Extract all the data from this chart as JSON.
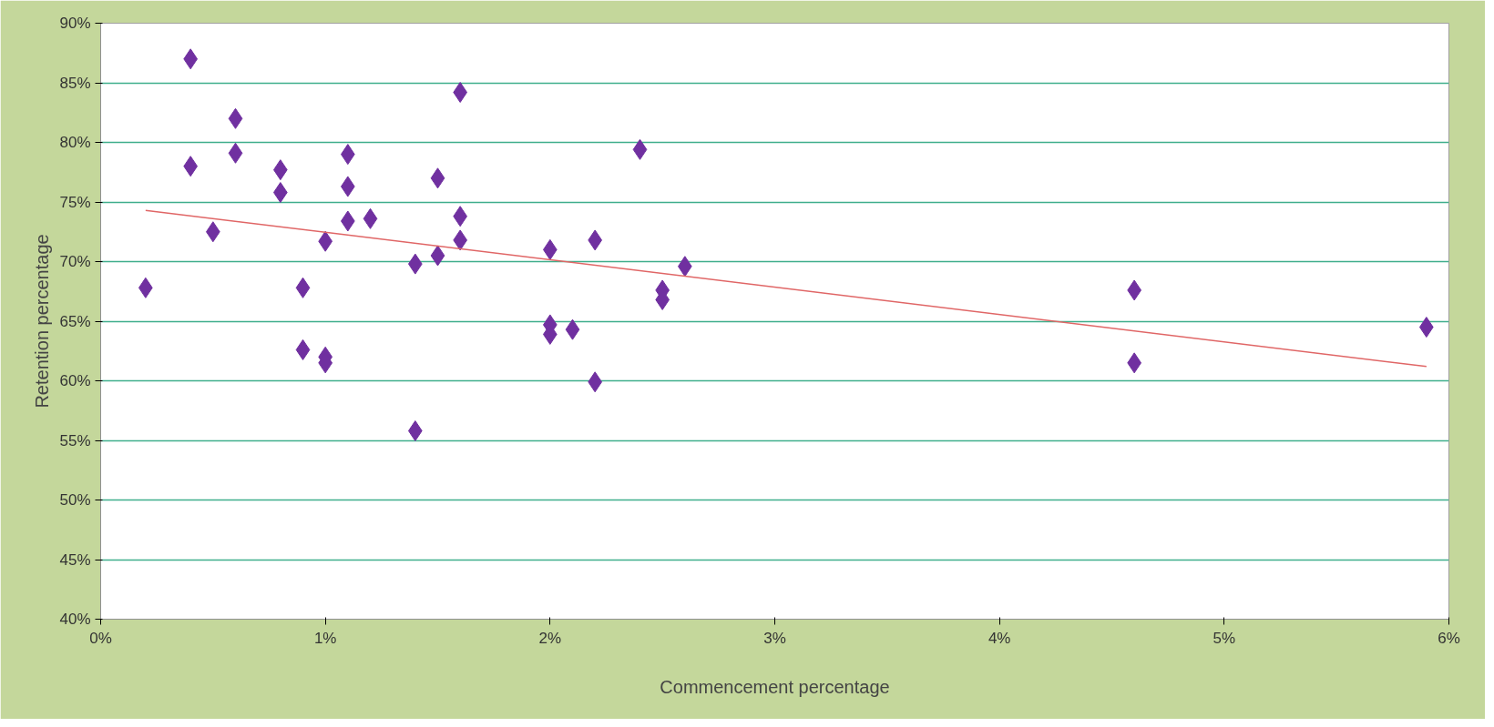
{
  "chart_data": {
    "type": "scatter",
    "xlabel": "Commencement percentage",
    "ylabel": "Retention percentage",
    "xlim": [
      0,
      6
    ],
    "ylim": [
      40,
      90
    ],
    "xticks": [
      {
        "value": 0,
        "label": "0%"
      },
      {
        "value": 1,
        "label": "1%"
      },
      {
        "value": 2,
        "label": "2%"
      },
      {
        "value": 3,
        "label": "3%"
      },
      {
        "value": 4,
        "label": "4%"
      },
      {
        "value": 5,
        "label": "5%"
      },
      {
        "value": 6,
        "label": "6%"
      }
    ],
    "yticks": [
      {
        "value": 40,
        "label": "40%"
      },
      {
        "value": 45,
        "label": "45%"
      },
      {
        "value": 50,
        "label": "50%"
      },
      {
        "value": 55,
        "label": "55%"
      },
      {
        "value": 60,
        "label": "60%"
      },
      {
        "value": 65,
        "label": "65%"
      },
      {
        "value": 70,
        "label": "70%"
      },
      {
        "value": 75,
        "label": "75%"
      },
      {
        "value": 80,
        "label": "80%"
      },
      {
        "value": 85,
        "label": "85%"
      },
      {
        "value": 90,
        "label": "90%"
      }
    ],
    "grid": "y",
    "marker": "diamond",
    "series": [
      {
        "color": "#7030a0",
        "x": [
          0.2,
          0.4,
          0.4,
          0.5,
          0.6,
          0.6,
          0.8,
          0.8,
          0.9,
          0.9,
          1.0,
          1.0,
          1.0,
          1.1,
          1.1,
          1.1,
          1.2,
          1.4,
          1.4,
          1.5,
          1.5,
          1.6,
          1.6,
          1.6,
          2.0,
          2.0,
          2.0,
          2.1,
          2.2,
          2.2,
          2.4,
          2.5,
          2.5,
          2.6,
          4.6,
          4.6,
          5.9
        ],
        "values": [
          67.8,
          87,
          78,
          72.5,
          82,
          79.1,
          77.7,
          75.8,
          67.8,
          62.6,
          71.7,
          62,
          61.5,
          79,
          76.3,
          73.4,
          73.6,
          69.8,
          55.8,
          77,
          70.5,
          84.2,
          73.8,
          71.8,
          71,
          64.7,
          63.9,
          64.3,
          71.8,
          59.9,
          79.4,
          67.6,
          66.8,
          69.6,
          67.6,
          61.5,
          64.5
        ]
      },
      {
        "type": "line",
        "marker": "none",
        "color": "#e06666",
        "x": [
          0.2,
          5.9
        ],
        "values": [
          74.3,
          61.2
        ]
      }
    ]
  }
}
